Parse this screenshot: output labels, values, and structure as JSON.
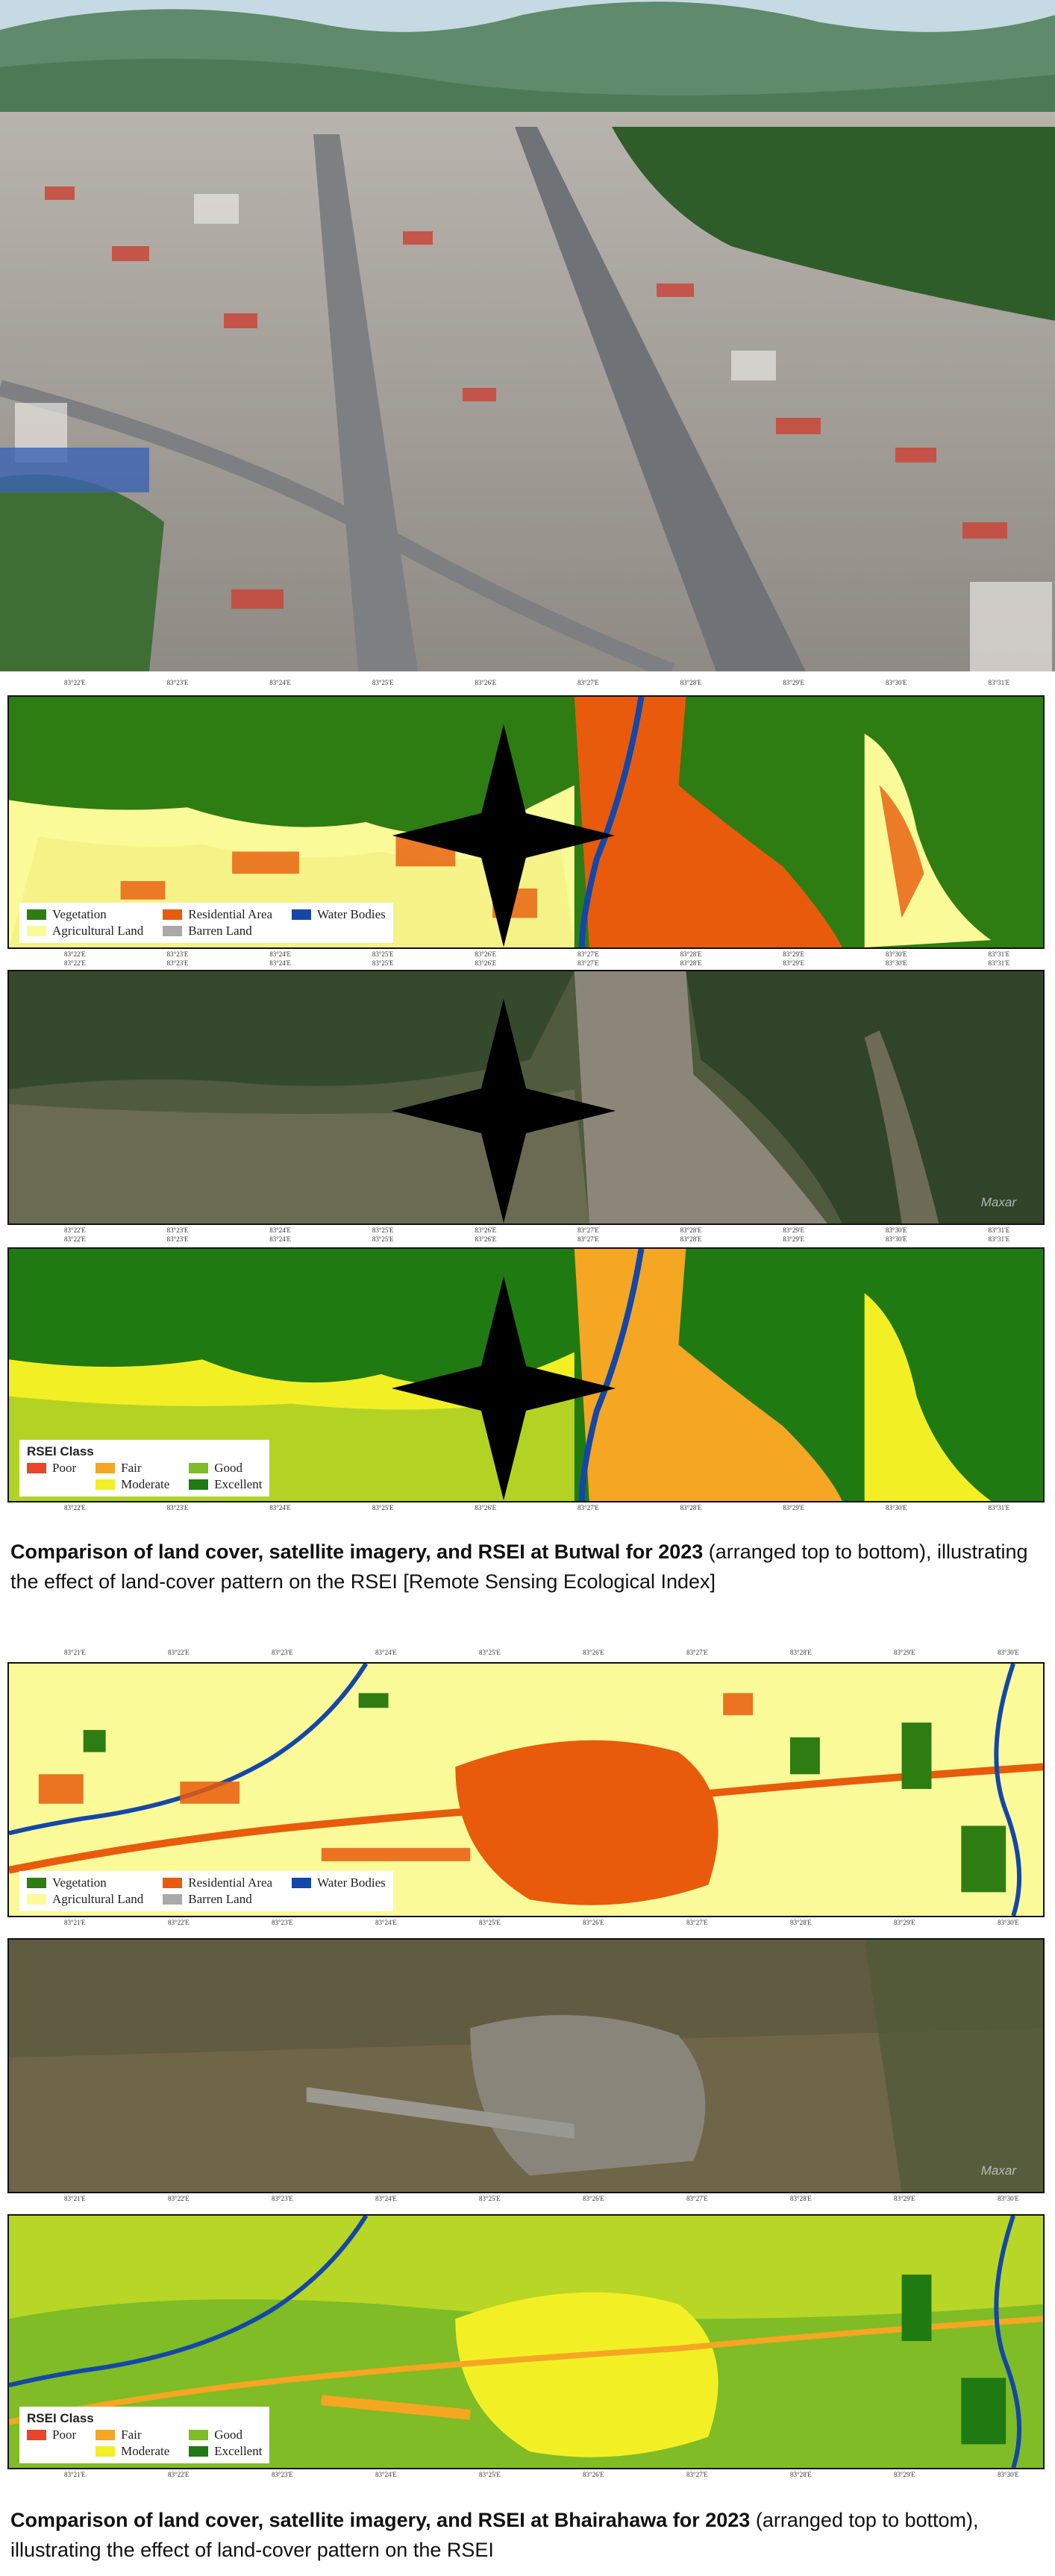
{
  "colors": {
    "vegetation": "#2d7d12",
    "agricultural": "#fbfa98",
    "residential": "#e85b0c",
    "water": "#1347a8",
    "barren": "#a9a9a9",
    "poor": "#e8452b",
    "fair": "#f5a623",
    "moderate": "#f2f025",
    "good": "#7fbc25",
    "excellent": "#1f7a12"
  },
  "lulc_legend": {
    "vegetation": "Vegetation",
    "agricultural": "Agricultural Land",
    "residential": "Residential Area",
    "barren": "Barren Land",
    "water": "Water Bodies"
  },
  "rsei_legend": {
    "title": "RSEI Class",
    "poor": "Poor",
    "fair": "Fair",
    "moderate": "Moderate",
    "good": "Good",
    "excellent": "Excellent"
  },
  "watermark": "Maxar",
  "butwal_ticks": [
    "83°22'E",
    "83°23'E",
    "83°24'E",
    "83°25'E",
    "83°26'E",
    "83°27'E",
    "83°28'E",
    "83°29'E",
    "83°30'E",
    "83°31'E"
  ],
  "bhairahawa_ticks": [
    "83°21'E",
    "83°22'E",
    "83°23'E",
    "83°24'E",
    "83°25'E",
    "83°26'E",
    "83°27'E",
    "83°28'E",
    "83°29'E",
    "83°30'E"
  ],
  "caption1": {
    "bold": "Comparison of land cover, satellite imagery, and RSEI at Butwal for 2023",
    "rest": " (arranged top to bottom), illustrating the effect of land-cover pattern on the RSEI [Remote Sensing Ecological Index]"
  },
  "caption2": {
    "bold": "Comparison of land cover, satellite imagery, and RSEI at Bhairahawa for 2023",
    "rest": " (arranged top to bottom), illustrating the effect of land-cover pattern on the RSEI"
  }
}
